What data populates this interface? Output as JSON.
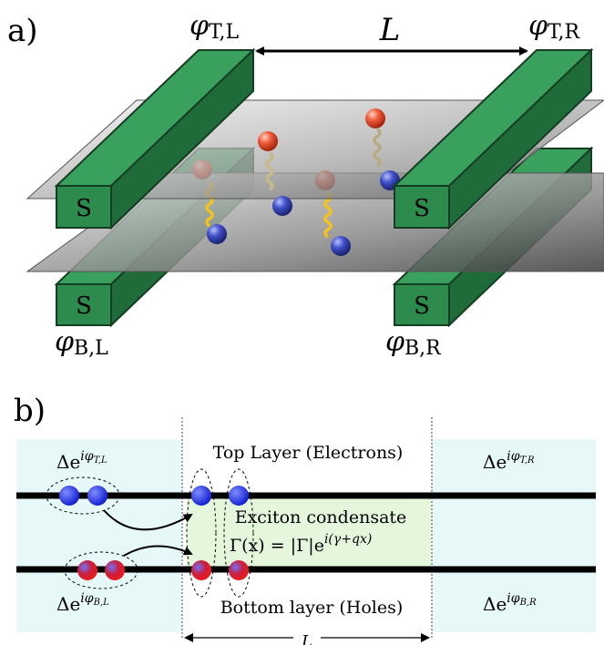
{
  "panel_a": {
    "label": "a)",
    "phi_tl": "φ",
    "phi_tl_sub": "T,L",
    "phi_tr": "φ",
    "phi_tr_sub": "T,R",
    "phi_bl": "φ",
    "phi_bl_sub": "B,L",
    "phi_br": "φ",
    "phi_br_sub": "B,R",
    "length": "L",
    "superconductor_label": "S"
  },
  "panel_b": {
    "label": "b)",
    "top_layer": "Top Layer (Electrons)",
    "bottom_layer": "Bottom layer (Holes)",
    "condensate_title": "Exciton condensate",
    "condensate_eq_lhs": "Γ(x) = |Γ|e",
    "condensate_eq_exp": "i(γ+qx)",
    "delta": "Δe",
    "delta_tl_exp": "iφ",
    "delta_tl_sub": "T,L",
    "delta_tr_exp": "iφ",
    "delta_tr_sub": "T,R",
    "delta_bl_exp": "iφ",
    "delta_bl_sub": "B,L",
    "delta_br_exp": "iφ",
    "delta_br_sub": "B,R",
    "length": "L"
  },
  "colors": {
    "superconductor": "#2e8b4e",
    "superconductor_dark": "#1f6b3a",
    "electron": "#1f2fd6",
    "hole": "#e0203a",
    "cyan_region": "#e6f8f8",
    "green_region": "#e4f6dc",
    "layer": "#000000"
  }
}
